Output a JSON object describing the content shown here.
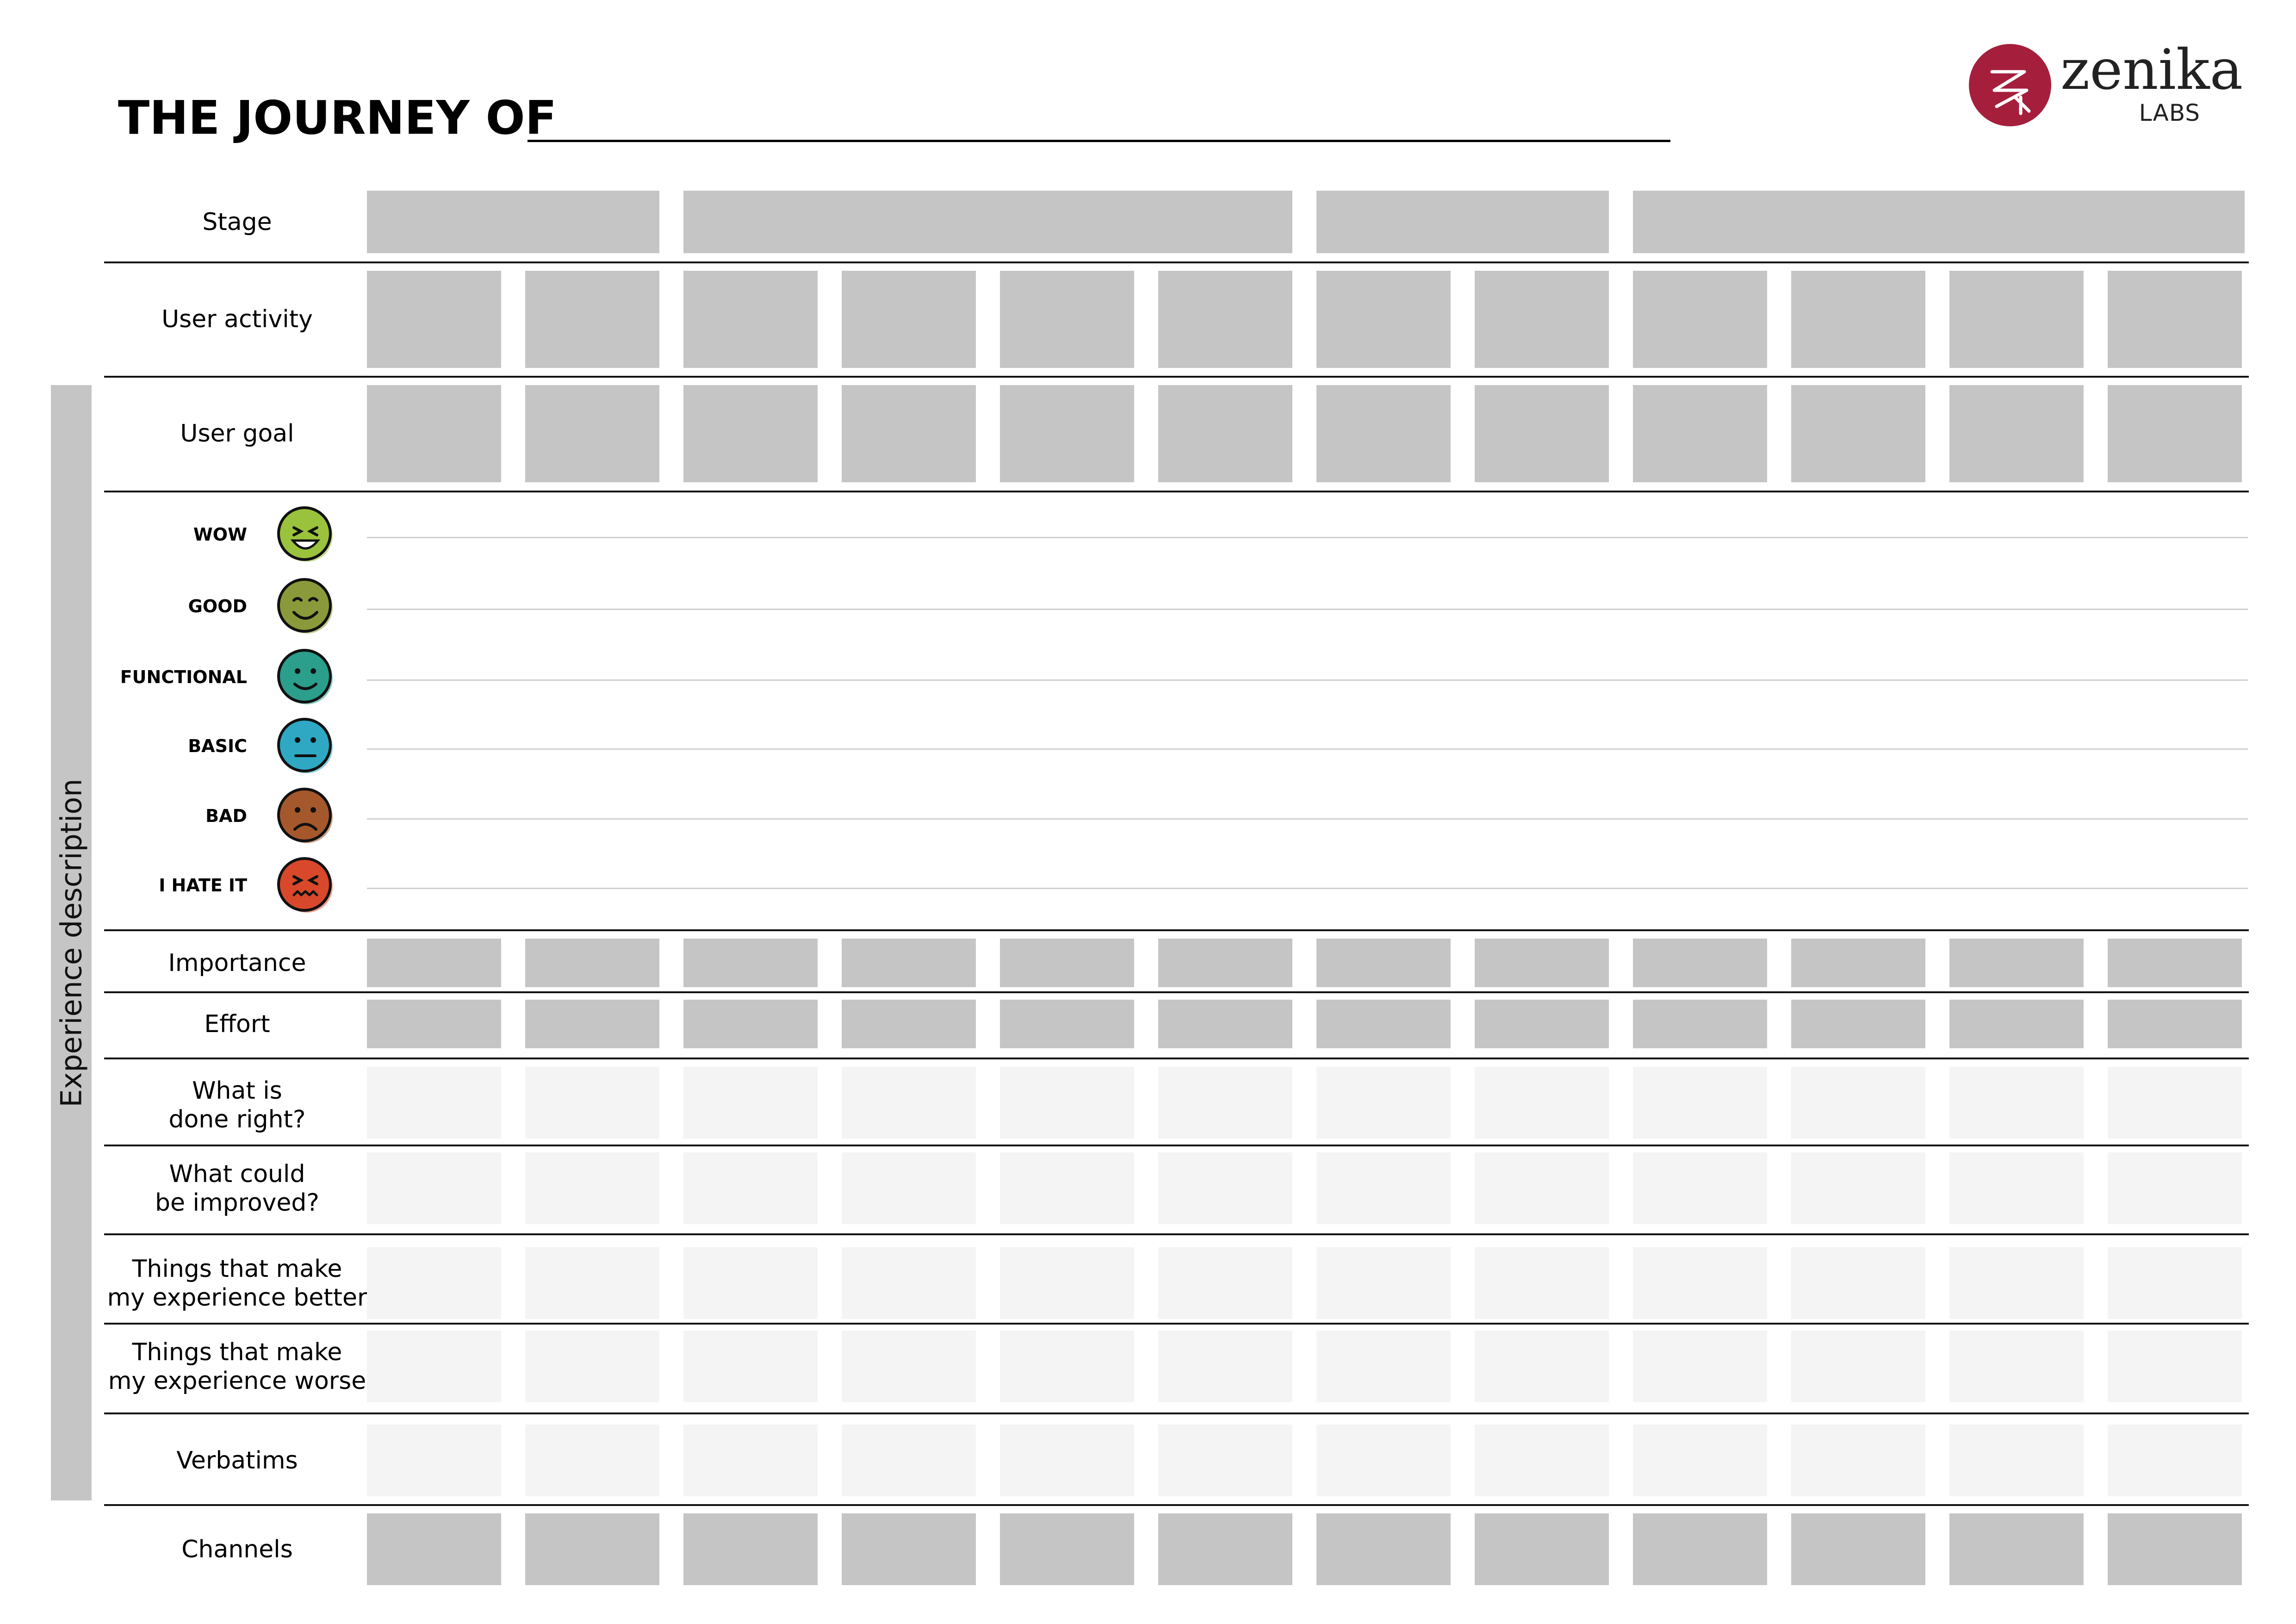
{
  "title": "THE JOURNEY OF",
  "logo": {
    "name": "zenika",
    "sub": "LABS",
    "color": "#a51f3c"
  },
  "side_label": "Experience description",
  "rows": {
    "stage": "Stage",
    "user_activity": "User activity",
    "user_goal": "User goal",
    "importance": "Importance",
    "effort": "Effort",
    "done_right": "What is\ndone right?",
    "improved": "What could\nbe improved?",
    "better": "Things that make\nmy experience better",
    "worse": "Things that make\nmy experience worse",
    "verbatims": "Verbatims",
    "channels": "Channels"
  },
  "emotions": [
    {
      "label": "WOW",
      "color": "#9bc23c",
      "icon": "laughing-face-icon"
    },
    {
      "label": "GOOD",
      "color": "#8a9a3a",
      "icon": "smiling-face-icon"
    },
    {
      "label": "FUNCTIONAL",
      "color": "#2b9e8c",
      "icon": "slight-smile-face-icon"
    },
    {
      "label": "BASIC",
      "color": "#2fa8c4",
      "icon": "neutral-face-icon"
    },
    {
      "label": "BAD",
      "color": "#a6582d",
      "icon": "frowning-face-icon"
    },
    {
      "label": "I HATE IT",
      "color": "#d9482b",
      "icon": "angry-face-icon"
    }
  ],
  "colors": {
    "cell_dark": "#c5c5c5",
    "cell_light": "#f4f4f4"
  }
}
